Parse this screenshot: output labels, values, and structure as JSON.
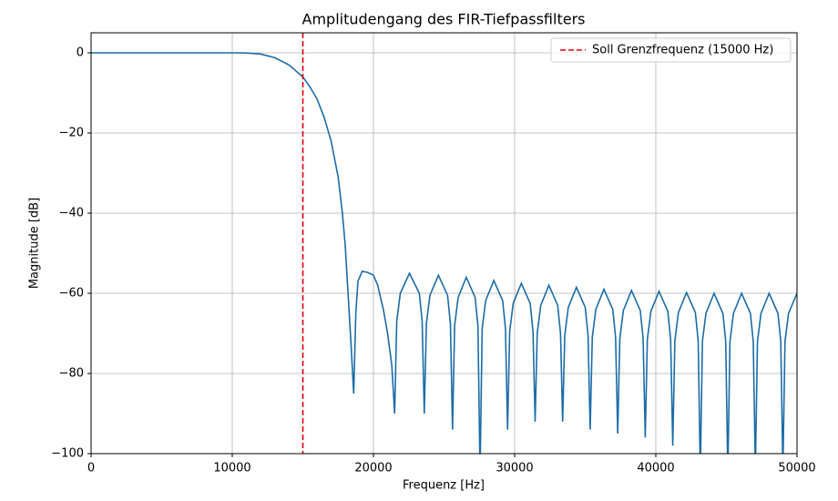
{
  "chart_data": {
    "type": "line",
    "title": "Amplitudengang des FIR-Tiefpassfilters",
    "xlabel": "Frequenz [Hz]",
    "ylabel": "Magnitude [dB]",
    "x": [
      0,
      5000,
      10000,
      11000,
      12000,
      13000,
      14000,
      15000,
      15500,
      16000,
      16500,
      17000,
      17500,
      17800,
      18000,
      18200,
      18400,
      18600,
      18750,
      18900,
      19200,
      19600,
      20000,
      20300,
      20700,
      21000,
      21300,
      21500,
      21650,
      21900,
      22550,
      23250,
      23450,
      23600,
      23750,
      24000,
      24600,
      25250,
      25450,
      25600,
      25750,
      26000,
      26575,
      27200,
      27400,
      27550,
      27700,
      27950,
      28525,
      29150,
      29350,
      29500,
      29650,
      29900,
      30475,
      31100,
      31300,
      31450,
      31600,
      31850,
      32425,
      33050,
      33250,
      33400,
      33550,
      33800,
      34375,
      35000,
      35200,
      35350,
      35500,
      35750,
      36325,
      36950,
      37150,
      37300,
      37450,
      37700,
      38275,
      38900,
      39100,
      39250,
      39400,
      39650,
      40225,
      40850,
      41050,
      41200,
      41350,
      41600,
      42175,
      42800,
      43000,
      43150,
      43300,
      43550,
      44125,
      44750,
      44950,
      45100,
      45250,
      45500,
      46075,
      46700,
      46900,
      47050,
      47200,
      47450,
      48025,
      48650,
      48850,
      49000,
      49150,
      49400,
      50000
    ],
    "series": [
      {
        "color": "#1b6ca8",
        "values": [
          0,
          0,
          0,
          -0.05,
          -0.3,
          -1.2,
          -3,
          -6,
          -8.5,
          -11.5,
          -16,
          -22,
          -31,
          -40,
          -48,
          -60,
          -72,
          -85,
          -65,
          -57,
          -54.5,
          -54.8,
          -55.5,
          -58,
          -64,
          -70,
          -78,
          -90,
          -67,
          -60,
          -55,
          -60,
          -67,
          -90,
          -67.5,
          -60.5,
          -55.5,
          -60.5,
          -67.5,
          -94,
          -68,
          -61,
          -56,
          -61,
          -68,
          -105,
          -68.8,
          -61.8,
          -56.8,
          -61.8,
          -68.8,
          -94,
          -69.5,
          -62.5,
          -57.5,
          -62.5,
          -69.5,
          -92,
          -70,
          -63,
          -58,
          -63,
          -70,
          -92,
          -70.5,
          -63.5,
          -58.5,
          -63.5,
          -70.5,
          -94,
          -71,
          -64,
          -59,
          -64,
          -71,
          -95,
          -71.3,
          -64.3,
          -59.3,
          -64.3,
          -71.3,
          -96,
          -71.5,
          -64.5,
          -59.5,
          -64.5,
          -71.5,
          -98,
          -71.8,
          -64.8,
          -59.8,
          -64.8,
          -71.8,
          -105,
          -72,
          -65,
          -60,
          -65,
          -72,
          -105,
          -72,
          -65,
          -60,
          -65,
          -72,
          -104,
          -72,
          -65,
          -60,
          -65,
          -72,
          -104,
          -72,
          -65,
          -60
        ]
      }
    ],
    "vline": {
      "x": 15000,
      "name": "Soll Grenzfrequenz (15000 Hz)",
      "color": "#e8000b",
      "dashed": true
    },
    "xlim": [
      0,
      50000
    ],
    "xticks": [
      0,
      10000,
      20000,
      30000,
      40000,
      50000
    ],
    "ylim": [
      -100,
      5
    ],
    "yticks": [
      {
        "value": -100,
        "label": "−100"
      },
      {
        "value": -80,
        "label": "−80"
      },
      {
        "value": -60,
        "label": "−60"
      },
      {
        "value": -40,
        "label": "−40"
      },
      {
        "value": -20,
        "label": "−20"
      },
      0
    ],
    "grid": true,
    "legend": "upper right"
  }
}
